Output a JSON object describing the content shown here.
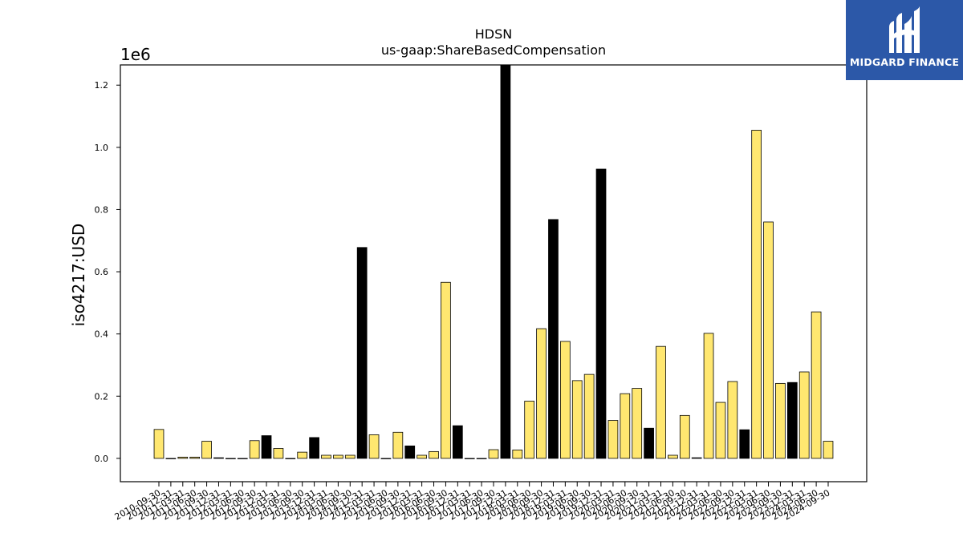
{
  "brand": {
    "name": "MIDGARD FINANCE",
    "bg_color": "#2c58a8"
  },
  "chart_data": {
    "type": "bar",
    "title": "HDSN",
    "subtitle": "us-gaap:ShareBasedCompensation",
    "ylabel": "iso4217:USD",
    "xlabel": "",
    "y_exponent_label": "1e6",
    "ylim": [
      -75000,
      1265000
    ],
    "yticks": [
      0.0,
      0.2,
      0.4,
      0.6,
      0.8,
      1.0,
      1.2
    ],
    "ytick_labels": [
      "0.0",
      "0.2",
      "0.4",
      "0.6",
      "0.8",
      "1.0",
      "1.2"
    ],
    "grid": false,
    "colors": {
      "yellow": "#ffe770",
      "black": "#000000",
      "edge": "#000000"
    },
    "categories": [
      "2010-09-30",
      "2010-12-31",
      "2011-03-31",
      "2011-06-30",
      "2011-09-30",
      "2011-12-31",
      "2012-03-31",
      "2012-06-30",
      "2012-09-30",
      "2012-12-31",
      "2013-03-31",
      "2013-06-30",
      "2013-09-30",
      "2013-12-31",
      "2014-03-31",
      "2014-06-30",
      "2014-09-30",
      "2014-12-31",
      "2015-03-31",
      "2015-06-30",
      "2015-09-30",
      "2015-12-31",
      "2016-03-31",
      "2016-06-30",
      "2016-09-30",
      "2016-12-31",
      "2017-03-31",
      "2017-06-30",
      "2017-09-30",
      "2017-12-31",
      "2018-03-31",
      "2018-06-30",
      "2018-09-30",
      "2018-12-31",
      "2019-03-31",
      "2019-06-30",
      "2019-09-30",
      "2019-12-31",
      "2020-03-31",
      "2020-06-30",
      "2020-09-30",
      "2020-12-31",
      "2021-03-31",
      "2021-06-30",
      "2021-09-30",
      "2021-12-31",
      "2022-03-31",
      "2022-06-30",
      "2022-09-30",
      "2022-12-31",
      "2023-03-31",
      "2023-06-30",
      "2023-09-30",
      "2023-12-31",
      "2024-03-31",
      "2024-06-30",
      "2024-09-30"
    ],
    "values": [
      93000,
      0,
      4000,
      4000,
      55000,
      2000,
      0,
      0,
      57000,
      73000,
      32000,
      0,
      20000,
      67000,
      10000,
      10000,
      10000,
      678000,
      76000,
      0,
      84000,
      40000,
      10000,
      22000,
      566000,
      105000,
      0,
      0,
      28000,
      1265000,
      27000,
      184000,
      417000,
      768000,
      376000,
      250000,
      270000,
      930000,
      122000,
      208000,
      225000,
      97000,
      360000,
      10000,
      138000,
      2000,
      402000,
      180000,
      247000,
      92000,
      1055000,
      760000,
      241000,
      244000,
      278000,
      471000,
      55000
    ],
    "bar_colors": [
      "yellow",
      "yellow",
      "yellow",
      "yellow",
      "yellow",
      "black",
      "yellow",
      "yellow",
      "yellow",
      "black",
      "yellow",
      "yellow",
      "yellow",
      "black",
      "yellow",
      "yellow",
      "yellow",
      "black",
      "yellow",
      "yellow",
      "yellow",
      "black",
      "yellow",
      "yellow",
      "yellow",
      "black",
      "yellow",
      "yellow",
      "yellow",
      "black",
      "yellow",
      "yellow",
      "yellow",
      "black",
      "yellow",
      "yellow",
      "yellow",
      "black",
      "yellow",
      "yellow",
      "yellow",
      "black",
      "yellow",
      "yellow",
      "yellow",
      "black",
      "yellow",
      "yellow",
      "yellow",
      "black",
      "yellow",
      "yellow",
      "yellow",
      "black",
      "yellow",
      "yellow",
      "yellow"
    ]
  }
}
